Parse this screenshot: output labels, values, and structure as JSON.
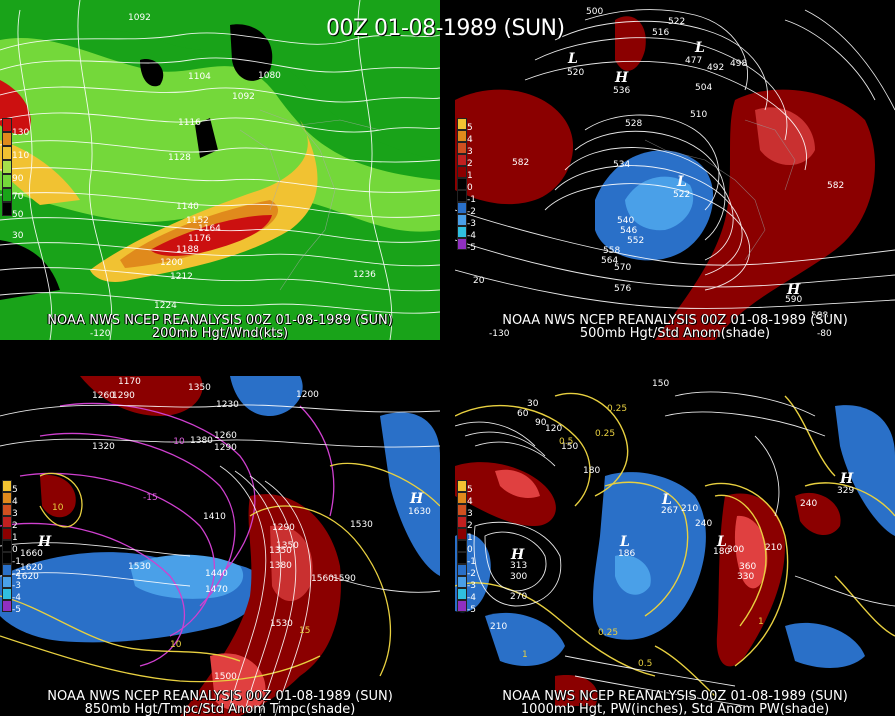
{
  "main_title": "00Z 01-08-1989 (SUN)",
  "panels": [
    {
      "caption_line1": "NOAA NWS NCEP REANALYSIS 00Z 01-08-1989 (SUN)",
      "caption_line2": "200mb Hgt/Wnd(kts)",
      "legend_labels": [
        "130",
        "110",
        "90",
        "70",
        "50",
        "30"
      ],
      "contour_labels": [
        "1092",
        "1104",
        "1080",
        "1092",
        "1116",
        "1128",
        "1140",
        "1152",
        "1164",
        "1176",
        "1188",
        "1200",
        "1212",
        "1224",
        "1236"
      ],
      "lon_labels": [
        "-120"
      ],
      "colors": {
        "wind_low": "#19a319",
        "wind_mid": "#74d83a",
        "wind_yellow": "#f1c232",
        "wind_orange": "#e08a1c",
        "wind_red": "#cc1010"
      }
    },
    {
      "caption_line1": "NOAA NWS NCEP REANALYSIS 00Z 01-08-1989 (SUN)",
      "caption_line2": "500mb Hgt/Std Anom(shade)",
      "legend_labels": [
        "5",
        "4",
        "3",
        "2",
        "1",
        "0",
        "-1",
        "-2",
        "-3",
        "-4",
        "-5"
      ],
      "contour_labels": [
        "500",
        "522",
        "516",
        "492",
        "498",
        "504",
        "510",
        "528",
        "534",
        "582",
        "540",
        "546",
        "552",
        "558",
        "564",
        "570",
        "576",
        "582",
        "588"
      ],
      "centers": [
        {
          "type": "L",
          "value": "520"
        },
        {
          "type": "H",
          "value": "536"
        },
        {
          "type": "L",
          "value": "477"
        },
        {
          "type": "L",
          "value": "522"
        },
        {
          "type": "H",
          "value": "590"
        }
      ],
      "lon_labels": [
        "-130",
        "-80"
      ],
      "lat_labels": [
        "20"
      ]
    },
    {
      "caption_line1": "NOAA NWS NCEP REANALYSIS 00Z 01-08-1989 (SUN)",
      "caption_line2": "850mb Hgt/Tmpc/Std Anom Tmpc(shade)",
      "legend_labels": [
        "5",
        "4",
        "3",
        "2",
        "1",
        "0",
        "-1",
        "-2",
        "-3",
        "-4",
        "-5"
      ],
      "contour_labels": [
        "1170",
        "1260",
        "1290",
        "1350",
        "1230",
        "1200",
        "1320",
        "1380",
        "1260",
        "1290",
        "1410",
        "1530",
        "1440",
        "1470",
        "1350",
        "1380",
        "1560",
        "1590",
        "1530",
        "1500",
        "1620",
        "1660",
        "1620",
        "1290",
        "1350",
        "1530"
      ],
      "temp_labels": [
        "-10",
        "-15",
        "10",
        "15",
        "10"
      ],
      "centers": [
        {
          "type": "H",
          "value": "1660"
        },
        {
          "type": "H",
          "value": "1630"
        }
      ]
    },
    {
      "caption_line1": "NOAA NWS NCEP REANALYSIS 00Z 01-08-1989 (SUN)",
      "caption_line2": "1000mb Hgt, PW(inches), Std Anom PW(shade)",
      "legend_labels": [
        "5",
        "4",
        "3",
        "2",
        "1",
        "0",
        "-1",
        "-2",
        "-3",
        "-4",
        "-5"
      ],
      "contour_labels": [
        "150",
        "30",
        "60",
        "90",
        "120",
        "150",
        "180",
        "240",
        "210",
        "300",
        "270",
        "210",
        "240",
        "300",
        "210",
        "360",
        "330",
        "180"
      ],
      "pw_labels": [
        "0.25",
        "0.25",
        "0.5",
        "0.25",
        "1",
        "0.5",
        "1"
      ],
      "centers": [
        {
          "type": "H",
          "value": "313"
        },
        {
          "type": "H",
          "value": "329"
        },
        {
          "type": "L",
          "value": "186"
        },
        {
          "type": "L",
          "value": "267"
        },
        {
          "type": "L",
          "value": "182"
        }
      ]
    }
  ]
}
